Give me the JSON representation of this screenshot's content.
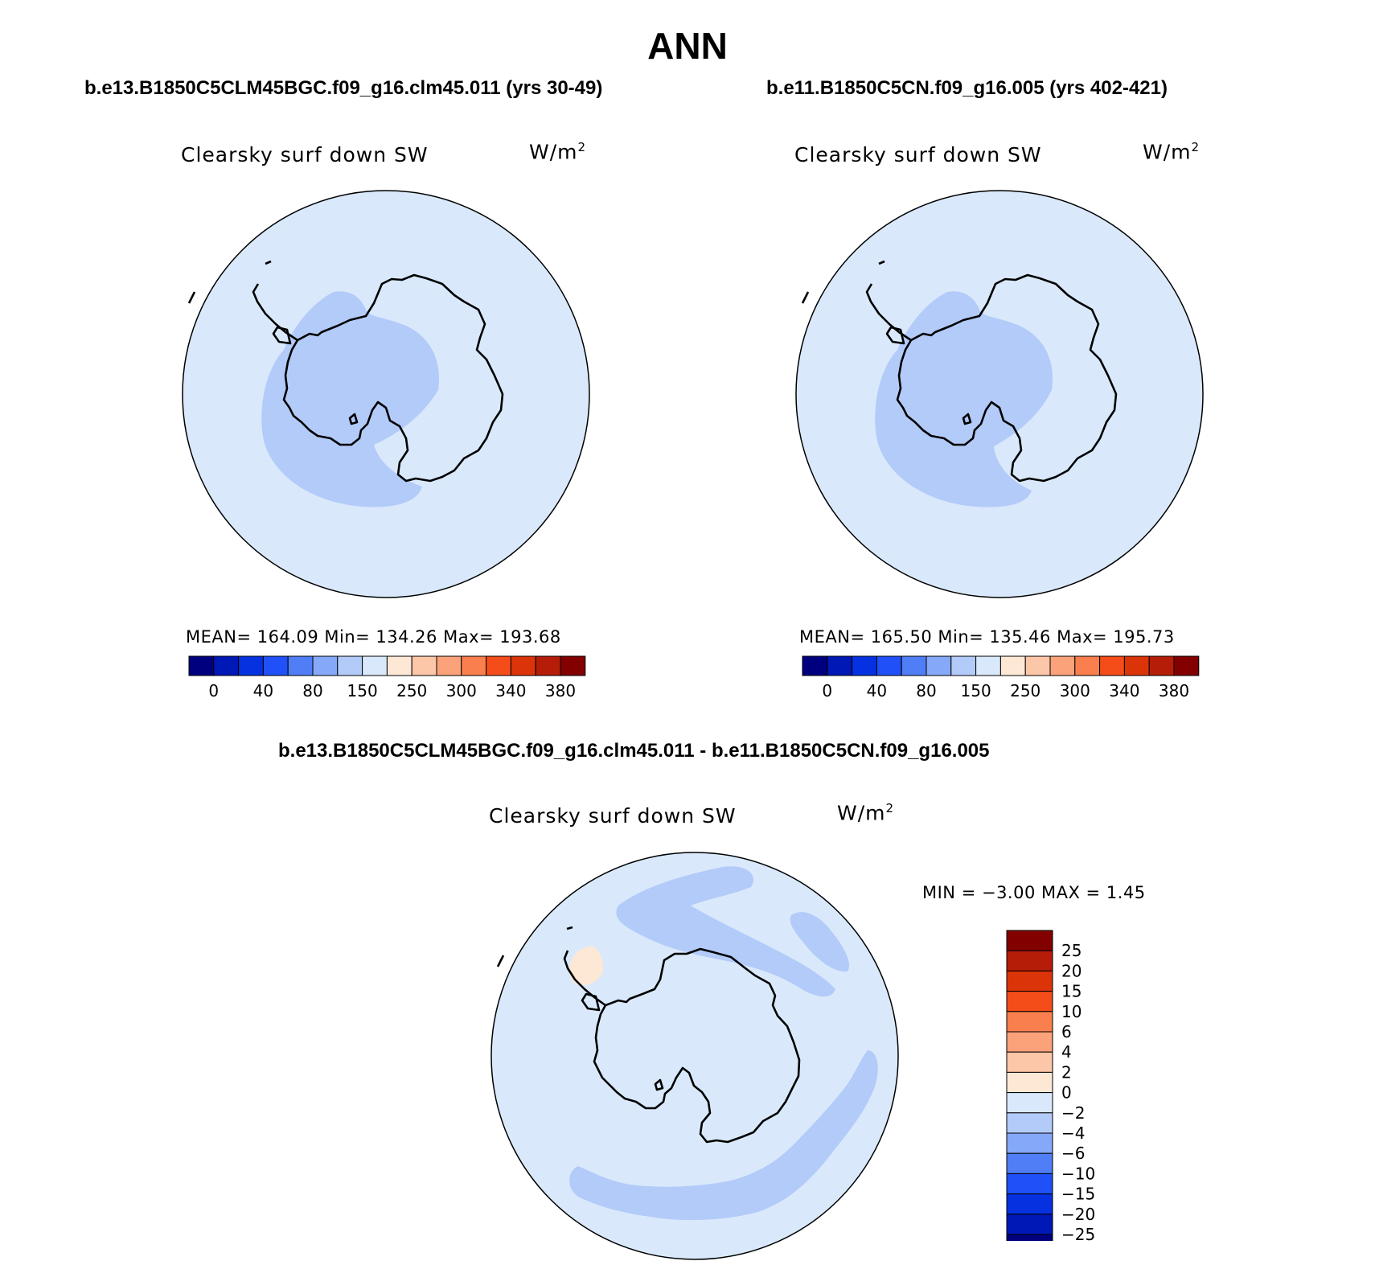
{
  "title": "ANN",
  "panels": [
    {
      "case_title": "b.e13.B1850C5CLM45BGC.f09_g16.clm45.011 (yrs 30-49)",
      "variable": "Clearsky surf down SW",
      "units_base": "W/m",
      "units_exp": "2",
      "stats": "MEAN= 164.09   Min= 134.26   Max= 193.68"
    },
    {
      "case_title": "b.e11.B1850C5CN.f09_g16.005 (yrs 402-421)",
      "variable": "Clearsky surf down SW",
      "units_base": "W/m",
      "units_exp": "2",
      "stats": "MEAN= 165.50   Min= 135.46   Max= 195.73"
    }
  ],
  "diff_panel": {
    "case_title": "b.e13.B1850C5CLM45BGC.f09_g16.clm45.011 - b.e11.B1850C5CN.f09_g16.005",
    "variable": "Clearsky surf down SW",
    "units_base": "W/m",
    "units_exp": "2",
    "minmax": "MIN =   −3.00 MAX =    1.45"
  },
  "colorbar_main": {
    "labels": [
      "0",
      "40",
      "80",
      "150",
      "250",
      "300",
      "340",
      "380"
    ],
    "colors": [
      "#00007f",
      "#0018b5",
      "#0531e0",
      "#2050f7",
      "#4f7ef6",
      "#85a8f8",
      "#b3cbf9",
      "#d9e9fb",
      "#fde8d6",
      "#fcc6a8",
      "#fba27b",
      "#f97f4e",
      "#f44d1a",
      "#dc3409",
      "#b51d08",
      "#830000"
    ]
  },
  "colorbar_diff": {
    "labels": [
      "25",
      "20",
      "15",
      "10",
      "6",
      "4",
      "2",
      "0",
      "−2",
      "−4",
      "−6",
      "−10",
      "−15",
      "−20",
      "−25"
    ],
    "colors": [
      "#830000",
      "#b51d08",
      "#dc3409",
      "#f44d1a",
      "#f97f4e",
      "#fba27b",
      "#fcc6a8",
      "#fde8d6",
      "#d9e9fb",
      "#b3cbf9",
      "#85a8f8",
      "#4f7ef6",
      "#2050f7",
      "#0531e0",
      "#0018b5",
      "#00007f"
    ]
  },
  "map_colors": {
    "ocean": "#d9e9fb",
    "low_band": "#b3cbf9",
    "positive": "#fde8d6",
    "coast": "#000000"
  }
}
